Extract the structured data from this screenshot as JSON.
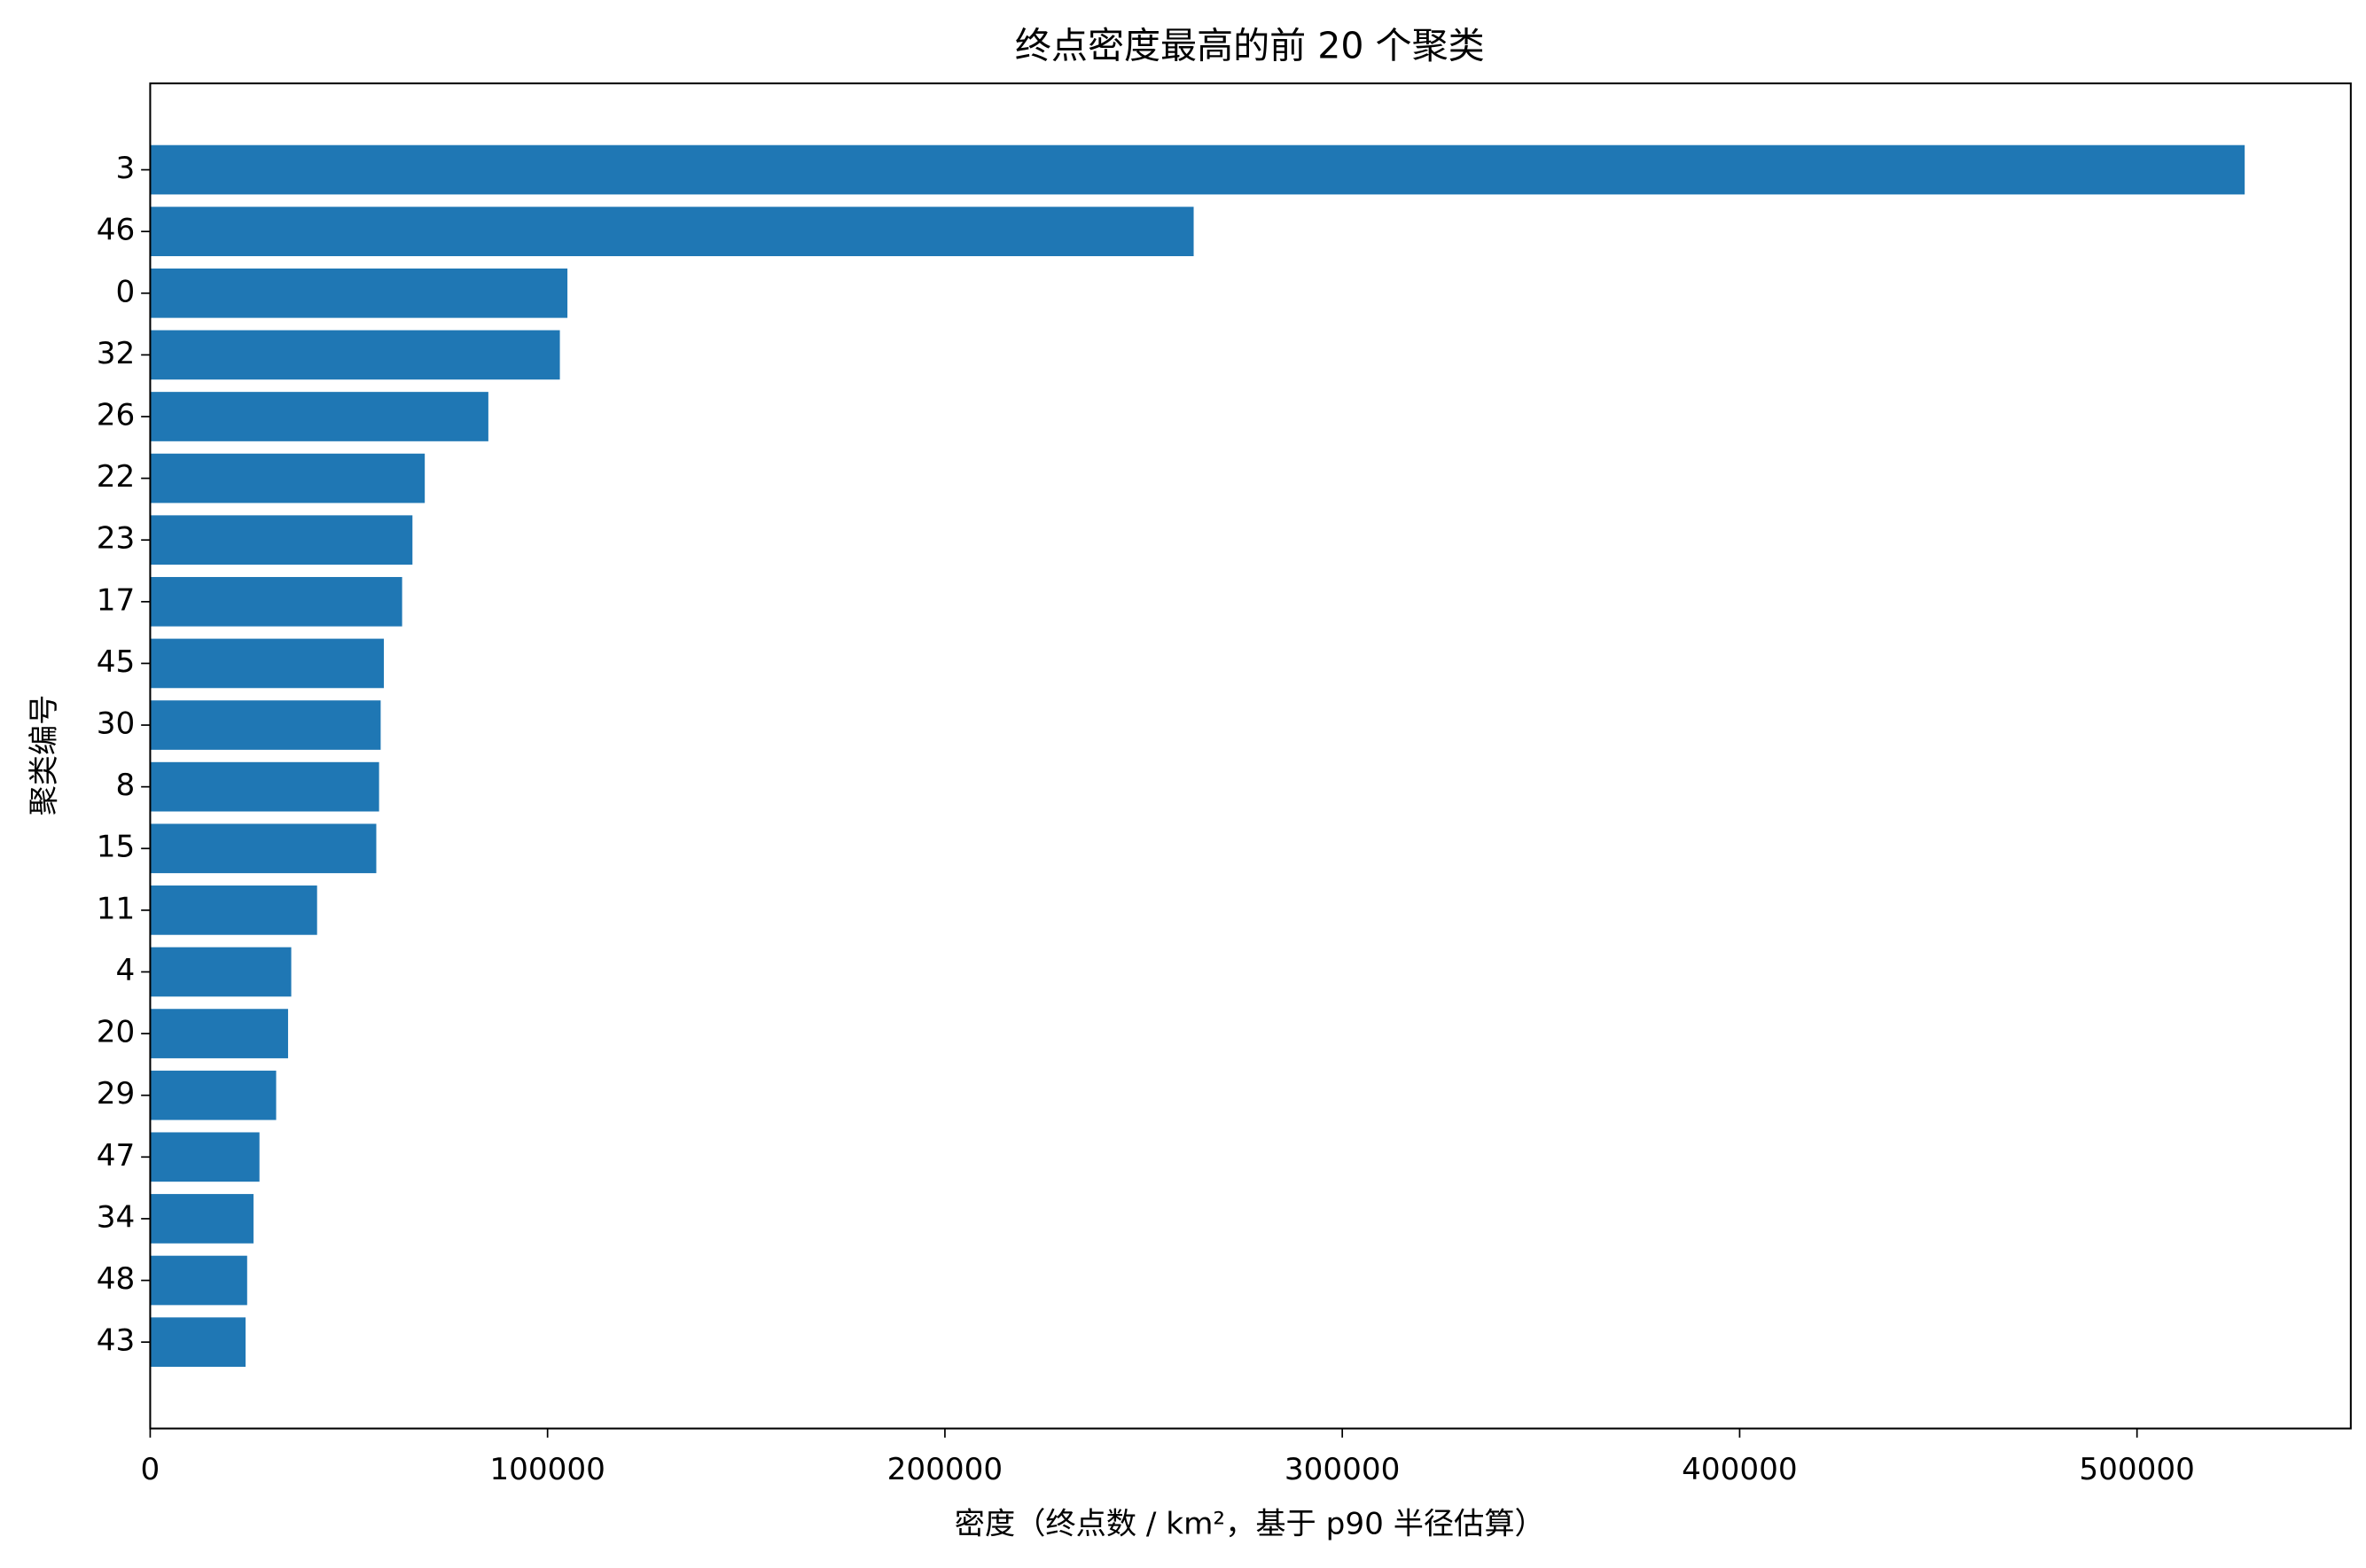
{
  "chart_data": {
    "type": "barh",
    "title": "终点密度最高的前 20 个聚类",
    "xlabel": "密度（终点数 / km²，基于 p90 半径估算）",
    "ylabel": "聚类编号",
    "categories": [
      "3",
      "46",
      "0",
      "32",
      "26",
      "22",
      "23",
      "17",
      "45",
      "30",
      "8",
      "15",
      "11",
      "4",
      "20",
      "29",
      "47",
      "34",
      "48",
      "43"
    ],
    "values": [
      527100,
      262600,
      105000,
      103100,
      85100,
      69100,
      66000,
      63400,
      58800,
      58000,
      57600,
      56900,
      42000,
      35500,
      34700,
      31700,
      27500,
      26000,
      24400,
      24000
    ],
    "color": "#1f77b4",
    "xlim": [
      0,
      553800
    ],
    "xticks": [
      0,
      100000,
      200000,
      300000,
      400000,
      500000
    ]
  }
}
